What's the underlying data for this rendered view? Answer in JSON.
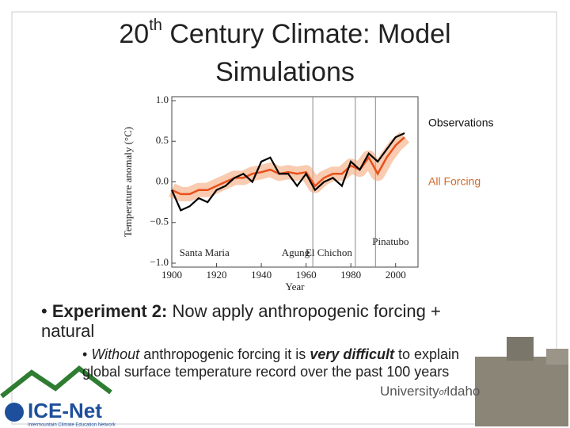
{
  "title": {
    "base": "20",
    "sup": "th",
    "rest": " Century Climate: Model Simulations"
  },
  "chart_data": {
    "type": "line",
    "x": [
      1900,
      1904,
      1908,
      1912,
      1916,
      1920,
      1924,
      1928,
      1932,
      1936,
      1940,
      1944,
      1948,
      1952,
      1956,
      1960,
      1964,
      1968,
      1972,
      1976,
      1980,
      1984,
      1988,
      1992,
      1996,
      2000,
      2004
    ],
    "series": [
      {
        "name": "Observations",
        "color": "#000000",
        "values": [
          -0.1,
          -0.35,
          -0.3,
          -0.2,
          -0.25,
          -0.1,
          -0.05,
          0.05,
          0.1,
          0.0,
          0.25,
          0.3,
          0.1,
          0.1,
          -0.05,
          0.1,
          -0.1,
          0.0,
          0.05,
          -0.05,
          0.25,
          0.15,
          0.35,
          0.25,
          0.4,
          0.55,
          0.6
        ]
      },
      {
        "name": "All Forcing",
        "color": "#e8501a",
        "values": [
          -0.1,
          -0.15,
          -0.15,
          -0.1,
          -0.1,
          -0.05,
          0.0,
          0.05,
          0.05,
          0.1,
          0.12,
          0.15,
          0.1,
          0.12,
          0.1,
          0.12,
          -0.05,
          0.05,
          0.1,
          0.1,
          0.2,
          0.15,
          0.3,
          0.1,
          0.3,
          0.45,
          0.55
        ]
      }
    ],
    "xlim": [
      1900,
      2010
    ],
    "xticks": [
      1900,
      1920,
      1940,
      1960,
      1980,
      2000
    ],
    "ylim": [
      -1,
      1
    ],
    "yticks": [
      {
        "value": 1,
        "label": "1.0"
      },
      0.5,
      {
        "value": 0,
        "label": "0.0"
      },
      {
        "value": -0.5,
        "label": "−0.5"
      },
      {
        "value": -1,
        "label": "−1.0"
      }
    ],
    "xlabel": "Year",
    "ylabel": "Temperature anomaly (°C)",
    "annotations": [
      {
        "label": "Santa Maria",
        "x": 1902
      },
      {
        "label": "Agung",
        "x": 1963
      },
      {
        "label": "El Chichon",
        "x": 1982
      },
      {
        "label": "Pinatubo",
        "x": 1991
      }
    ]
  },
  "bullets": [
    {
      "runs": [
        {
          "text": "Experiment 2:",
          "style": "bold"
        },
        {
          "text": " Now apply anthropogenic forcing + natural",
          "style": "normal"
        }
      ],
      "sub": [
        {
          "runs": [
            {
              "text": "Without",
              "style": "italic"
            },
            {
              "text": " anthropogenic forcing it is ",
              "style": "normal"
            },
            {
              "text": "very difficult",
              "style": "bolditalic"
            },
            {
              "text": " to explain global surface temperature record over the past 100 years",
              "style": "normal"
            }
          ]
        }
      ]
    }
  ],
  "footer": {
    "logo": "ICE-Net",
    "logo_sub": "Intermountain Climate Education Network",
    "university": "University",
    "of": "of",
    "idaho": "Idaho"
  }
}
